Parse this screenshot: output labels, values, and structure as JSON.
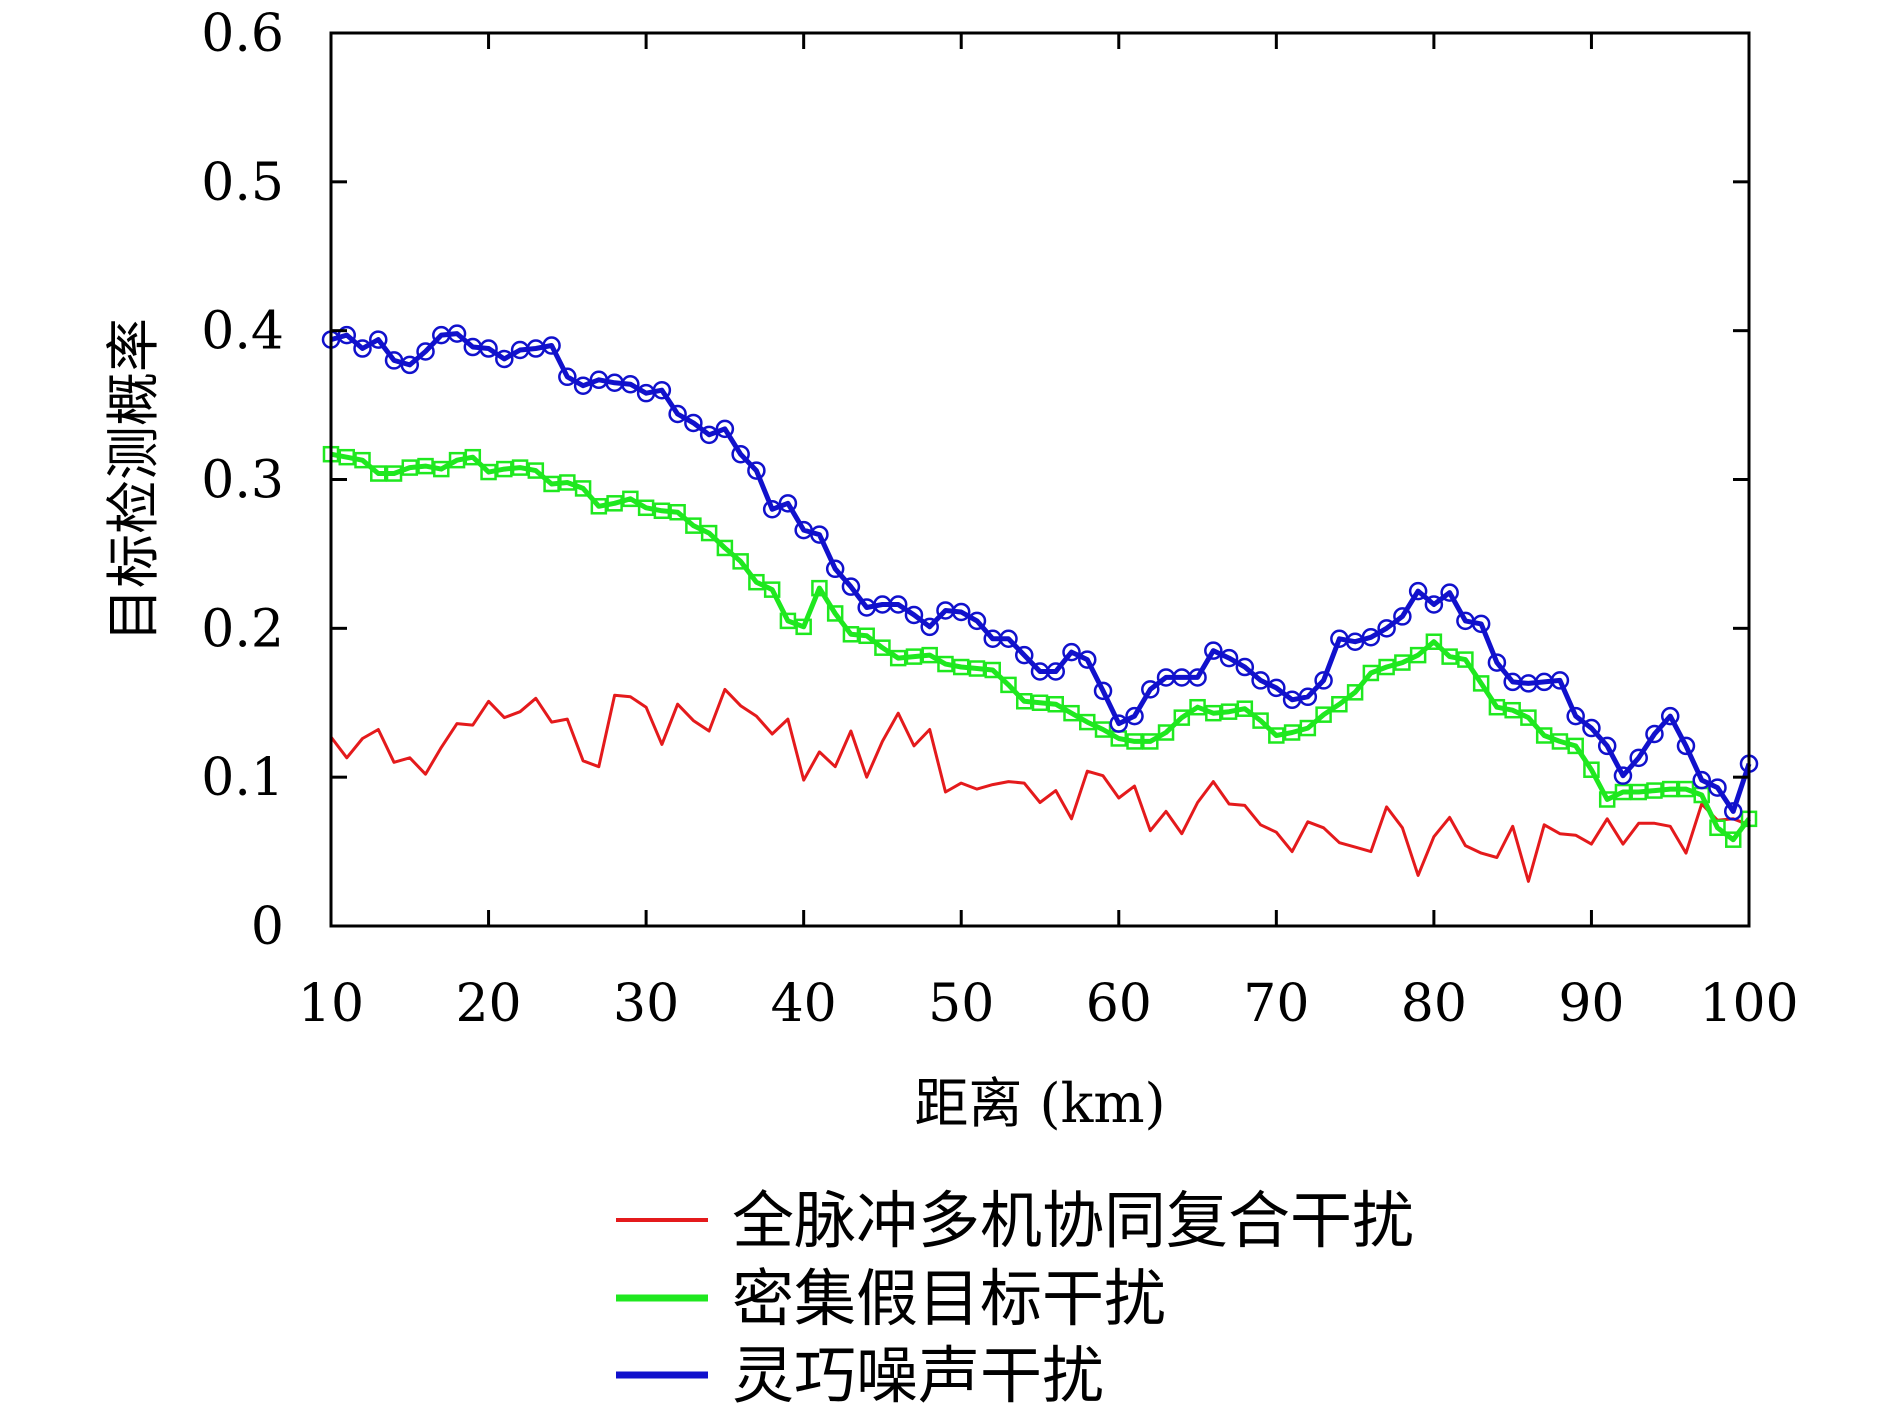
{
  "chart_data": {
    "type": "line",
    "title": "",
    "xlabel": "距离 (km)",
    "ylabel": "目标检测概率",
    "xlim": [
      10,
      100
    ],
    "ylim": [
      0,
      0.6
    ],
    "xticks": [
      10,
      20,
      30,
      40,
      50,
      60,
      70,
      80,
      90,
      100
    ],
    "yticks": [
      0,
      0.1,
      0.2,
      0.3,
      0.4,
      0.5,
      0.6
    ],
    "xtick_labels": [
      "10",
      "20",
      "30",
      "40",
      "50",
      "60",
      "70",
      "80",
      "90",
      "100"
    ],
    "ytick_labels": [
      "0",
      "0.1",
      "0.2",
      "0.3",
      "0.4",
      "0.5",
      "0.6"
    ],
    "grid": false,
    "legend_position": "bottom",
    "x": [
      10,
      11,
      12,
      13,
      14,
      15,
      16,
      17,
      18,
      19,
      20,
      21,
      22,
      23,
      24,
      25,
      26,
      27,
      28,
      29,
      30,
      31,
      32,
      33,
      34,
      35,
      36,
      37,
      38,
      39,
      40,
      41,
      42,
      43,
      44,
      45,
      46,
      47,
      48,
      49,
      50,
      51,
      52,
      53,
      54,
      55,
      56,
      57,
      58,
      59,
      60,
      61,
      62,
      63,
      64,
      65,
      66,
      67,
      68,
      69,
      70,
      71,
      72,
      73,
      74,
      75,
      76,
      77,
      78,
      79,
      80,
      81,
      82,
      83,
      84,
      85,
      86,
      87,
      88,
      89,
      90,
      91,
      92,
      93,
      94,
      95,
      96,
      97,
      98,
      99,
      100
    ],
    "series": [
      {
        "name": "全脉冲多机协同复合干扰",
        "color": "#e41a1c",
        "marker": "none",
        "values": [
          0.127,
          0.113,
          0.126,
          0.132,
          0.11,
          0.113,
          0.102,
          0.12,
          0.136,
          0.135,
          0.151,
          0.14,
          0.144,
          0.153,
          0.137,
          0.139,
          0.111,
          0.107,
          0.155,
          0.154,
          0.147,
          0.122,
          0.149,
          0.138,
          0.131,
          0.159,
          0.148,
          0.141,
          0.129,
          0.139,
          0.098,
          0.117,
          0.107,
          0.131,
          0.1,
          0.124,
          0.143,
          0.121,
          0.132,
          0.09,
          0.096,
          0.092,
          0.095,
          0.097,
          0.096,
          0.083,
          0.091,
          0.072,
          0.104,
          0.101,
          0.086,
          0.094,
          0.064,
          0.077,
          0.062,
          0.083,
          0.097,
          0.082,
          0.081,
          0.068,
          0.063,
          0.05,
          0.07,
          0.066,
          0.056,
          0.053,
          0.05,
          0.08,
          0.066,
          0.034,
          0.06,
          0.073,
          0.054,
          0.049,
          0.046,
          0.067,
          0.03,
          0.068,
          0.062,
          0.061,
          0.055,
          0.072,
          0.055,
          0.069,
          0.069,
          0.067,
          0.049,
          0.082,
          0.071,
          0.072,
          0.068
        ]
      },
      {
        "name": "密集假目标干扰",
        "color": "#1fe81f",
        "marker": "square",
        "values": [
          0.317,
          0.315,
          0.313,
          0.304,
          0.304,
          0.308,
          0.309,
          0.307,
          0.313,
          0.315,
          0.305,
          0.307,
          0.308,
          0.306,
          0.297,
          0.298,
          0.294,
          0.282,
          0.284,
          0.287,
          0.281,
          0.279,
          0.278,
          0.269,
          0.264,
          0.254,
          0.245,
          0.231,
          0.226,
          0.205,
          0.201,
          0.227,
          0.21,
          0.196,
          0.195,
          0.187,
          0.18,
          0.181,
          0.182,
          0.176,
          0.174,
          0.173,
          0.172,
          0.162,
          0.151,
          0.15,
          0.149,
          0.143,
          0.137,
          0.132,
          0.126,
          0.124,
          0.124,
          0.13,
          0.14,
          0.147,
          0.143,
          0.144,
          0.146,
          0.138,
          0.128,
          0.13,
          0.133,
          0.142,
          0.149,
          0.157,
          0.17,
          0.174,
          0.177,
          0.182,
          0.191,
          0.181,
          0.179,
          0.163,
          0.147,
          0.145,
          0.14,
          0.128,
          0.124,
          0.121,
          0.105,
          0.085,
          0.09,
          0.09,
          0.091,
          0.092,
          0.092,
          0.088,
          0.066,
          0.058,
          0.072
        ]
      },
      {
        "name": "灵巧噪声干扰",
        "color": "#1111cc",
        "marker": "circle",
        "values": [
          0.394,
          0.397,
          0.388,
          0.394,
          0.38,
          0.377,
          0.386,
          0.397,
          0.398,
          0.389,
          0.388,
          0.381,
          0.387,
          0.388,
          0.39,
          0.369,
          0.363,
          0.367,
          0.365,
          0.364,
          0.358,
          0.36,
          0.344,
          0.338,
          0.33,
          0.334,
          0.317,
          0.306,
          0.28,
          0.284,
          0.266,
          0.263,
          0.24,
          0.228,
          0.214,
          0.216,
          0.216,
          0.209,
          0.201,
          0.212,
          0.211,
          0.205,
          0.193,
          0.193,
          0.182,
          0.171,
          0.171,
          0.184,
          0.179,
          0.158,
          0.136,
          0.141,
          0.159,
          0.167,
          0.167,
          0.167,
          0.185,
          0.18,
          0.174,
          0.165,
          0.16,
          0.152,
          0.154,
          0.165,
          0.193,
          0.191,
          0.194,
          0.2,
          0.208,
          0.225,
          0.216,
          0.224,
          0.205,
          0.203,
          0.177,
          0.164,
          0.163,
          0.164,
          0.165,
          0.141,
          0.133,
          0.121,
          0.101,
          0.113,
          0.129,
          0.141,
          0.121,
          0.098,
          0.093,
          0.077,
          0.109
        ]
      }
    ]
  }
}
